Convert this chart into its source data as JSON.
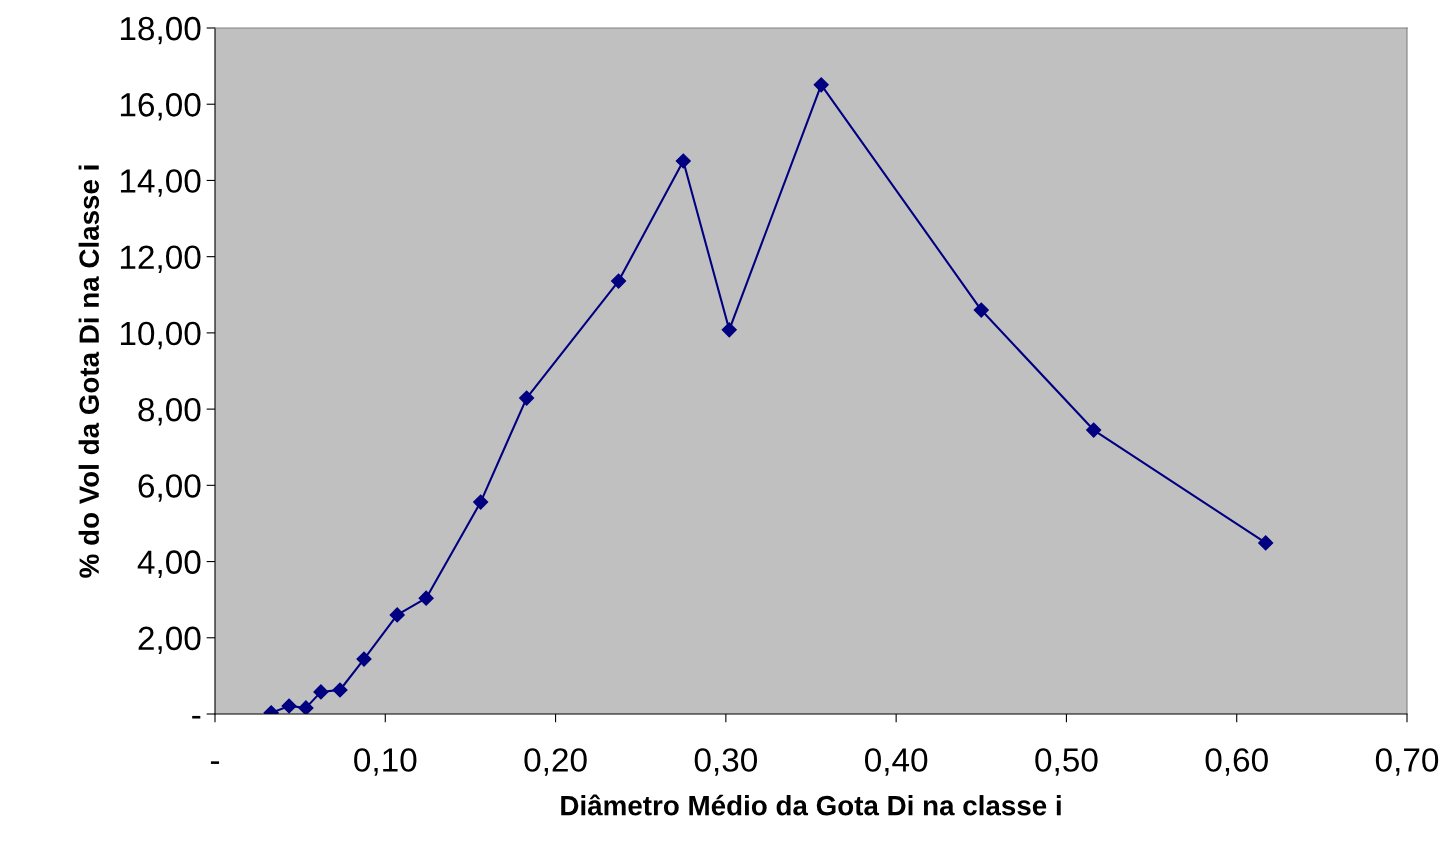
{
  "chart_data": {
    "type": "line",
    "xlabel": "Diâmetro Médio da Gota Di na classe i",
    "ylabel": "% do Vol da Gota Di na Classe i",
    "x": [
      0.033,
      0.0435,
      0.0534,
      0.0622,
      0.0734,
      0.0875,
      0.107,
      0.124,
      0.156,
      0.183,
      0.237,
      0.275,
      0.302,
      0.356,
      0.45,
      0.516,
      0.617
    ],
    "series": [
      {
        "color": "#000080",
        "values": [
          0.03,
          0.21,
          0.16,
          0.58,
          0.63,
          1.44,
          2.6,
          3.04,
          5.56,
          8.29,
          11.36,
          14.51,
          10.08,
          16.51,
          10.6,
          7.45,
          4.49
        ]
      }
    ],
    "xlim": [
      0,
      0.7
    ],
    "ylim": [
      0,
      18
    ],
    "xticks": [
      {
        "value": 0,
        "label": "-"
      },
      {
        "value": 0.1,
        "label": "0,10"
      },
      {
        "value": 0.2,
        "label": "0,20"
      },
      {
        "value": 0.3,
        "label": "0,30"
      },
      {
        "value": 0.4,
        "label": "0,40"
      },
      {
        "value": 0.5,
        "label": "0,50"
      },
      {
        "value": 0.6,
        "label": "0,60"
      },
      {
        "value": 0.7,
        "label": "0,70"
      }
    ],
    "yticks": [
      {
        "value": 0,
        "label": "-"
      },
      {
        "value": 2,
        "label": "2,00"
      },
      {
        "value": 4,
        "label": "4,00"
      },
      {
        "value": 6,
        "label": "6,00"
      },
      {
        "value": 8,
        "label": "8,00"
      },
      {
        "value": 10,
        "label": "10,00"
      },
      {
        "value": 12,
        "label": "12,00"
      },
      {
        "value": 14,
        "label": "14,00"
      },
      {
        "value": 16,
        "label": "16,00"
      },
      {
        "value": 18,
        "label": "18,00"
      }
    ],
    "grid": false,
    "legend": false,
    "marker": "diamond",
    "line_style": "solid"
  }
}
